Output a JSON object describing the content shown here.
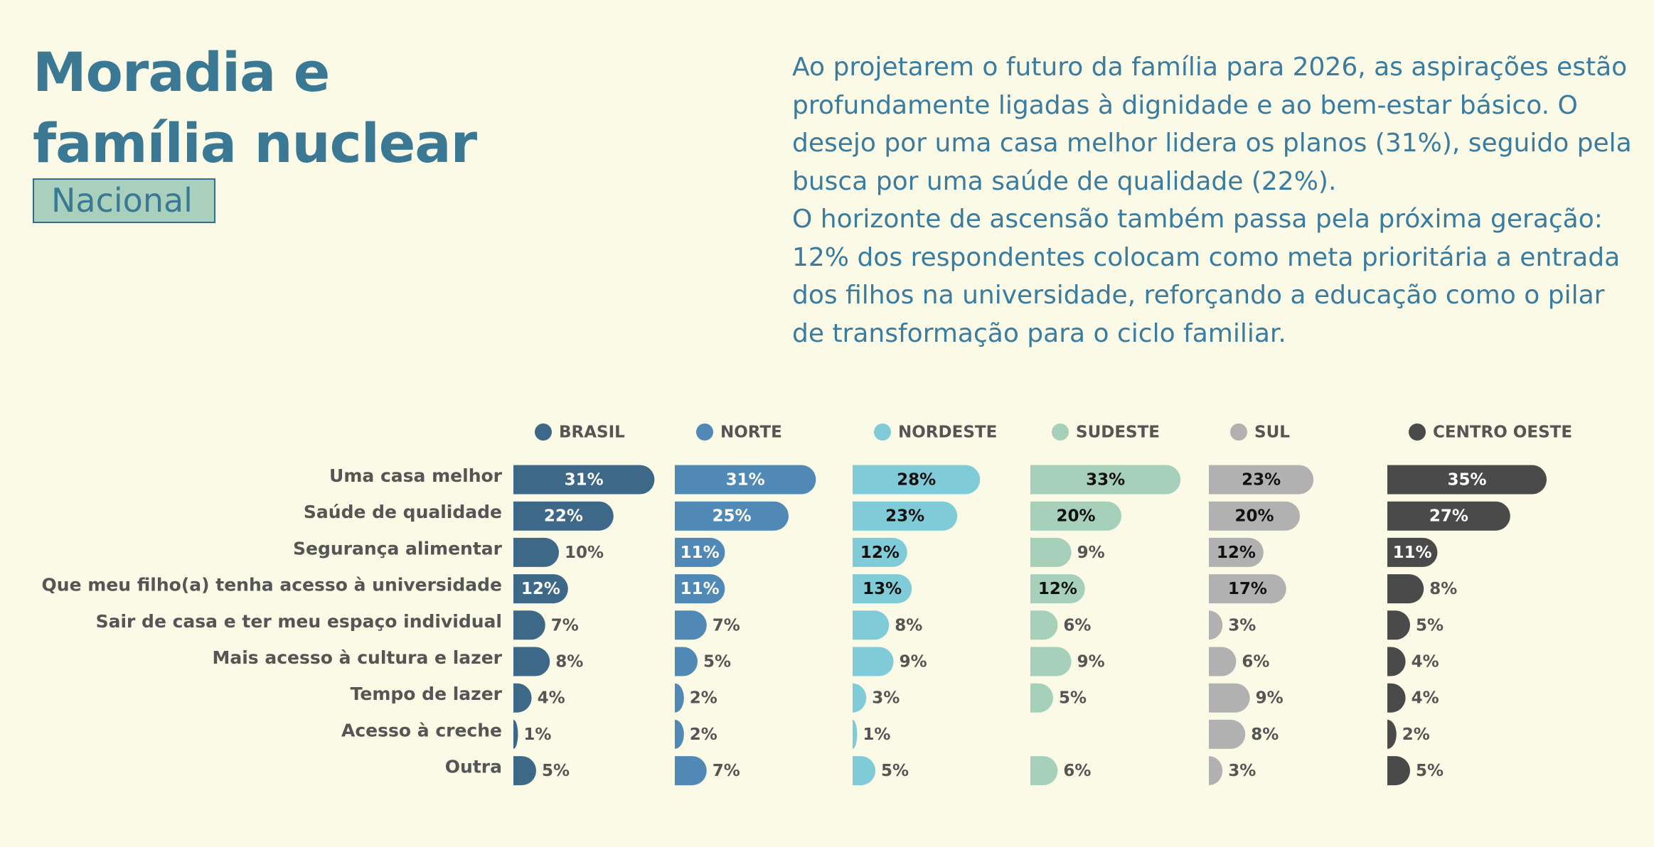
{
  "header": {
    "title_lines": [
      "Moradia e",
      "família nuclear"
    ],
    "badge": "Nacional",
    "paragraphs": [
      "Ao projetarem o futuro da família para 2026, as aspirações estão profundamente ligadas à dignidade e ao bem-estar básico. O desejo por uma casa melhor lidera os planos (31%), seguido pela busca por uma saúde de qualidade (22%).",
      "O horizonte de ascensão também passa pela próxima geração: 12% dos respondentes colocam como meta prioritária a entrada dos filhos na universidade, reforçando a educação como o pilar de transformação para o ciclo familiar."
    ]
  },
  "chart_data": {
    "type": "bar",
    "orientation": "horizontal",
    "categories": [
      "Uma casa melhor",
      "Saúde de qualidade",
      "Segurança alimentar",
      "Que meu filho(a) tenha acesso à universidade",
      "Sair de casa e ter meu espaço individual",
      "Mais acesso à cultura e lazer",
      "Tempo de lazer",
      "Acesso à creche",
      "Outra"
    ],
    "series": [
      {
        "name": "BRASIL",
        "color": "#3d6888",
        "values": [
          31,
          22,
          10,
          12,
          7,
          8,
          4,
          1,
          5
        ],
        "value_labels": [
          "31%",
          "22%",
          "10%",
          "12%",
          "7%",
          "8%",
          "4%",
          "1%",
          "5%"
        ]
      },
      {
        "name": "NORTE",
        "color": "#5089b5",
        "values": [
          31,
          25,
          11,
          11,
          7,
          5,
          2,
          2,
          7
        ],
        "value_labels": [
          "31%",
          "25%",
          "11%",
          "11%",
          "7%",
          "5%",
          "2%",
          "2%",
          "7%"
        ]
      },
      {
        "name": "NORDESTE",
        "color": "#80cbd8",
        "values": [
          28,
          23,
          12,
          13,
          8,
          9,
          3,
          1,
          5
        ],
        "value_labels": [
          "28%",
          "23%",
          "12%",
          "13%",
          "8%",
          "9%",
          "3%",
          "1%",
          "5%"
        ]
      },
      {
        "name": "SUDESTE",
        "color": "#a6d0ba",
        "values": [
          33,
          20,
          9,
          12,
          6,
          9,
          5,
          null,
          6
        ],
        "value_labels": [
          "33%",
          "20%",
          "9%",
          "12%",
          "6%",
          "9%",
          "5%",
          null,
          "6%"
        ]
      },
      {
        "name": "SUL",
        "color": "#b1b1b1",
        "values": [
          23,
          20,
          12,
          17,
          3,
          6,
          9,
          8,
          3
        ],
        "value_labels": [
          "23%",
          "20%",
          "12%",
          "17%",
          "3%",
          "6%",
          "9%",
          "8%",
          "3%"
        ]
      },
      {
        "name": "CENTRO OESTE",
        "color": "#4a4a4a",
        "values": [
          35,
          27,
          11,
          8,
          5,
          4,
          4,
          2,
          5
        ],
        "value_labels": [
          "35%",
          "27%",
          "11%",
          "8%",
          "5%",
          "4%",
          "4%",
          "2%",
          "5%"
        ]
      }
    ]
  }
}
